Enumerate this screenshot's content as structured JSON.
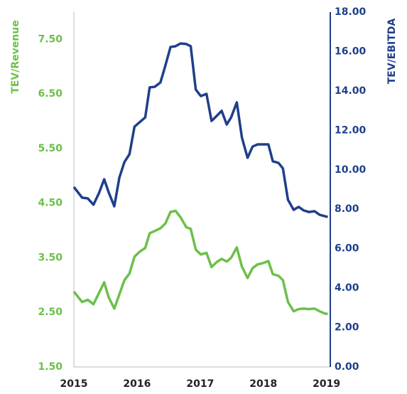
{
  "chart_data": {
    "type": "line",
    "ylabel": "TEV/Revenue",
    "y2label": "TEV/EBITDA",
    "xlim": [
      2015,
      2019.06
    ],
    "xticks": [
      2015,
      2016,
      2017,
      2018,
      2019
    ],
    "ylim": [
      1.5,
      8.0
    ],
    "yticks": [
      {
        "value": 1.5,
        "label": "1.50"
      },
      {
        "value": 2.5,
        "label": "2.50"
      },
      {
        "value": 3.5,
        "label": "3.50"
      },
      {
        "value": 4.5,
        "label": "4.50"
      },
      {
        "value": 5.5,
        "label": "5.50"
      },
      {
        "value": 6.5,
        "label": "6.50"
      },
      {
        "value": 7.5,
        "label": "7.50"
      }
    ],
    "y2lim": [
      0,
      18
    ],
    "y2ticks": [
      {
        "value": 0,
        "label": "0.00"
      },
      {
        "value": 2,
        "label": "2.00"
      },
      {
        "value": 4,
        "label": "4.00"
      },
      {
        "value": 6,
        "label": "6.00"
      },
      {
        "value": 8,
        "label": "8.00"
      },
      {
        "value": 10,
        "label": "10.00"
      },
      {
        "value": 12,
        "label": "12.00"
      },
      {
        "value": 14,
        "label": "14.00"
      },
      {
        "value": 16,
        "label": "16.00"
      },
      {
        "value": 18,
        "label": "18.00"
      }
    ],
    "x": [
      2015,
      2015.13,
      2015.22,
      2015.31,
      2015.4,
      2015.48,
      2015.55,
      2015.64,
      2015.72,
      2015.8,
      2015.88,
      2015.96,
      2016.04,
      2016.13,
      2016.2,
      2016.28,
      2016.37,
      2016.45,
      2016.53,
      2016.61,
      2016.69,
      2016.78,
      2016.85,
      2016.93,
      2017.01,
      2017.1,
      2017.18,
      2017.26,
      2017.34,
      2017.42,
      2017.49,
      2017.58,
      2017.66,
      2017.75,
      2017.83,
      2017.91,
      2017.99,
      2018.08,
      2018.15,
      2018.24,
      2018.31,
      2018.39,
      2018.48,
      2018.56,
      2018.64,
      2018.72,
      2018.81,
      2018.89,
      2018.97,
      2019.02
    ],
    "series": [
      {
        "color": "#6cc04a",
        "axis": "y",
        "values": [
          2.88,
          2.69,
          2.73,
          2.65,
          2.86,
          3.05,
          2.78,
          2.57,
          2.83,
          3.09,
          3.21,
          3.52,
          3.61,
          3.68,
          3.95,
          3.99,
          4.04,
          4.13,
          4.34,
          4.36,
          4.24,
          4.06,
          4.03,
          3.65,
          3.56,
          3.59,
          3.33,
          3.42,
          3.48,
          3.43,
          3.5,
          3.69,
          3.34,
          3.13,
          3.31,
          3.38,
          3.4,
          3.44,
          3.2,
          3.17,
          3.09,
          2.69,
          2.52,
          2.56,
          2.57,
          2.56,
          2.57,
          2.52,
          2.48,
          2.47
        ]
      },
      {
        "color": "#1f3f8a",
        "axis": "y2",
        "values": [
          9.13,
          8.59,
          8.55,
          8.23,
          8.84,
          9.52,
          8.87,
          8.15,
          9.6,
          10.39,
          10.79,
          12.19,
          12.41,
          12.66,
          14.18,
          14.21,
          14.43,
          15.3,
          16.23,
          16.27,
          16.41,
          16.38,
          16.27,
          14.07,
          13.74,
          13.85,
          12.48,
          12.73,
          12.99,
          12.3,
          12.66,
          13.42,
          11.65,
          10.61,
          11.18,
          11.29,
          11.29,
          11.29,
          10.43,
          10.35,
          10.07,
          8.48,
          7.97,
          8.12,
          7.94,
          7.86,
          7.9,
          7.72,
          7.65,
          7.61
        ]
      }
    ]
  }
}
